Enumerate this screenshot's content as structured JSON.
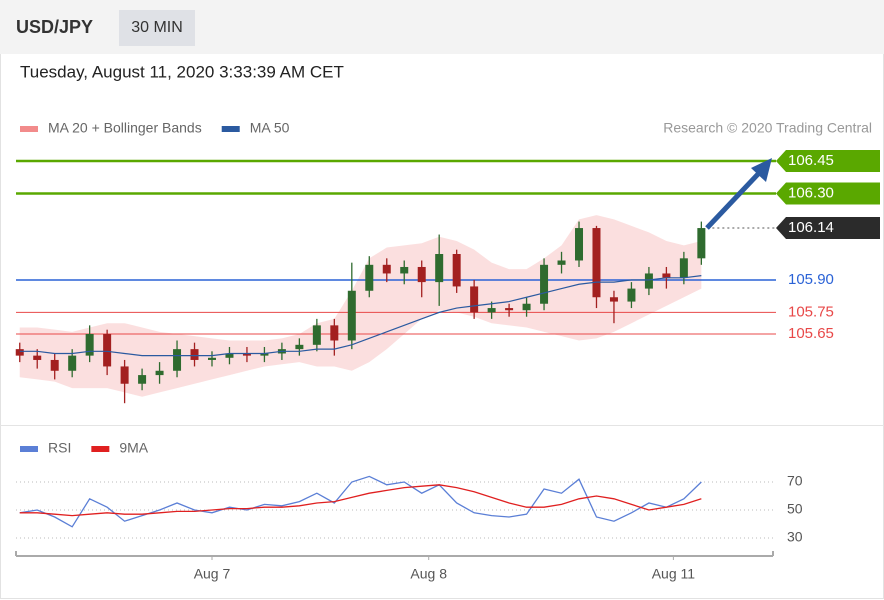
{
  "header": {
    "symbol": "USD/JPY",
    "interval": "30 MIN"
  },
  "timestamp": "Tuesday, August 11, 2020 3:33:39 AM CET",
  "credit": "Research © 2020 Trading Central",
  "chart_data": [
    {
      "type": "candlestick",
      "up_color": "#2f6b2f",
      "down_color": "#a32020",
      "open": [
        105.58,
        105.55,
        105.53,
        105.48,
        105.55,
        105.65,
        105.5,
        105.42,
        105.46,
        105.48,
        105.58,
        105.53,
        105.54,
        105.56,
        105.55,
        105.56,
        105.58,
        105.6,
        105.69,
        105.62,
        105.85,
        105.97,
        105.93,
        105.96,
        105.89,
        106.02,
        105.87,
        105.75,
        105.77,
        105.76,
        105.79,
        105.97,
        105.99,
        106.14,
        105.82,
        105.8,
        105.86,
        105.93,
        105.91,
        106.0
      ],
      "high": [
        105.61,
        105.58,
        105.56,
        105.58,
        105.69,
        105.67,
        105.53,
        105.49,
        105.52,
        105.62,
        105.61,
        105.57,
        105.59,
        105.59,
        105.59,
        105.61,
        105.63,
        105.72,
        105.72,
        105.98,
        106.01,
        106.0,
        105.99,
        105.99,
        106.11,
        106.04,
        105.9,
        105.8,
        105.79,
        105.82,
        106.0,
        106.03,
        106.17,
        106.15,
        105.85,
        105.89,
        105.96,
        105.96,
        106.03,
        106.17
      ],
      "low": [
        105.52,
        105.49,
        105.44,
        105.45,
        105.52,
        105.46,
        105.33,
        105.39,
        105.42,
        105.45,
        105.5,
        105.5,
        105.51,
        105.52,
        105.52,
        105.53,
        105.55,
        105.57,
        105.55,
        105.58,
        105.82,
        105.89,
        105.88,
        105.82,
        105.78,
        105.84,
        105.72,
        105.72,
        105.73,
        105.73,
        105.76,
        105.93,
        105.96,
        105.77,
        105.7,
        105.77,
        105.83,
        105.86,
        105.88,
        105.97
      ],
      "close": [
        105.55,
        105.53,
        105.48,
        105.55,
        105.65,
        105.5,
        105.42,
        105.46,
        105.48,
        105.58,
        105.53,
        105.54,
        105.56,
        105.55,
        105.56,
        105.58,
        105.6,
        105.69,
        105.62,
        105.85,
        105.97,
        105.93,
        105.96,
        105.89,
        106.02,
        105.87,
        105.75,
        105.77,
        105.76,
        105.79,
        105.97,
        105.99,
        106.14,
        105.82,
        105.8,
        105.86,
        105.93,
        105.91,
        106.0,
        106.14
      ],
      "series": [
        {
          "name": "MA 20 + Bollinger Bands",
          "color": "#f28b8b",
          "upper": [
            105.68,
            105.68,
            105.67,
            105.66,
            105.68,
            105.7,
            105.7,
            105.68,
            105.66,
            105.65,
            105.64,
            105.63,
            105.62,
            105.62,
            105.62,
            105.63,
            105.65,
            105.7,
            105.72,
            105.85,
            106.0,
            106.05,
            106.06,
            106.07,
            106.1,
            106.08,
            106.04,
            105.98,
            105.95,
            105.95,
            106.0,
            106.06,
            106.18,
            106.2,
            106.18,
            106.15,
            106.12,
            106.08,
            106.06,
            106.08
          ],
          "lower": [
            105.45,
            105.44,
            105.43,
            105.4,
            105.4,
            105.4,
            105.38,
            105.36,
            105.38,
            105.4,
            105.42,
            105.44,
            105.46,
            105.48,
            105.5,
            105.51,
            105.52,
            105.5,
            105.5,
            105.48,
            105.52,
            105.58,
            105.65,
            105.72,
            105.76,
            105.75,
            105.73,
            105.7,
            105.69,
            105.68,
            105.66,
            105.64,
            105.62,
            105.63,
            105.66,
            105.7,
            105.74,
            105.78,
            105.82,
            105.86
          ]
        },
        {
          "name": "MA 50",
          "color": "#2b5aa0",
          "values": [
            105.57,
            105.57,
            105.56,
            105.56,
            105.57,
            105.57,
            105.56,
            105.55,
            105.55,
            105.55,
            105.55,
            105.55,
            105.56,
            105.56,
            105.56,
            105.57,
            105.57,
            105.58,
            105.58,
            105.6,
            105.63,
            105.66,
            105.69,
            105.72,
            105.75,
            105.77,
            105.78,
            105.79,
            105.8,
            105.82,
            105.84,
            105.86,
            105.88,
            105.89,
            105.89,
            105.9,
            105.9,
            105.91,
            105.91,
            105.92
          ]
        }
      ],
      "levels": [
        {
          "value": 106.45,
          "label": "106.45",
          "color": "#5aa800",
          "fill": "#5aa800"
        },
        {
          "value": 106.3,
          "label": "106.30",
          "color": "#5aa800",
          "fill": "#5aa800"
        },
        {
          "value": 105.9,
          "label": "105.90",
          "color": "#2a62d6"
        },
        {
          "value": 105.75,
          "label": "105.75",
          "color": "#e84848"
        },
        {
          "value": 105.65,
          "label": "105.65",
          "color": "#e84848"
        }
      ],
      "current_price": {
        "value": 106.14,
        "label": "106.14",
        "fill": "#2b2b2b"
      },
      "xlim": [
        -0.1,
        43.1
      ],
      "ylim": [
        105.25,
        106.55
      ]
    },
    {
      "type": "line",
      "series": [
        {
          "name": "RSI",
          "color": "#5b7fd6",
          "values": [
            48,
            50,
            45,
            38,
            58,
            52,
            42,
            46,
            50,
            55,
            50,
            48,
            52,
            50,
            54,
            53,
            56,
            62,
            55,
            70,
            74,
            68,
            70,
            62,
            68,
            55,
            48,
            46,
            45,
            47,
            65,
            62,
            72,
            45,
            42,
            48,
            55,
            52,
            58,
            70
          ]
        },
        {
          "name": "9MA",
          "color": "#e02020",
          "values": [
            48,
            48,
            47,
            46,
            47,
            48,
            47,
            47,
            48,
            49,
            49,
            50,
            51,
            51,
            52,
            52,
            53,
            55,
            56,
            59,
            62,
            64,
            66,
            67,
            68,
            66,
            63,
            59,
            55,
            52,
            52,
            54,
            58,
            60,
            58,
            54,
            50,
            52,
            54,
            58
          ]
        }
      ],
      "xlim": [
        -0.1,
        43.1
      ],
      "xticks": [
        {
          "value": 11,
          "label": "Aug 7"
        },
        {
          "value": 23.4,
          "label": "Aug 8"
        },
        {
          "value": 37.4,
          "label": "Aug 11"
        }
      ],
      "ylim": [
        20,
        80
      ],
      "yticks": [
        30,
        50,
        70
      ],
      "grid": true
    }
  ]
}
